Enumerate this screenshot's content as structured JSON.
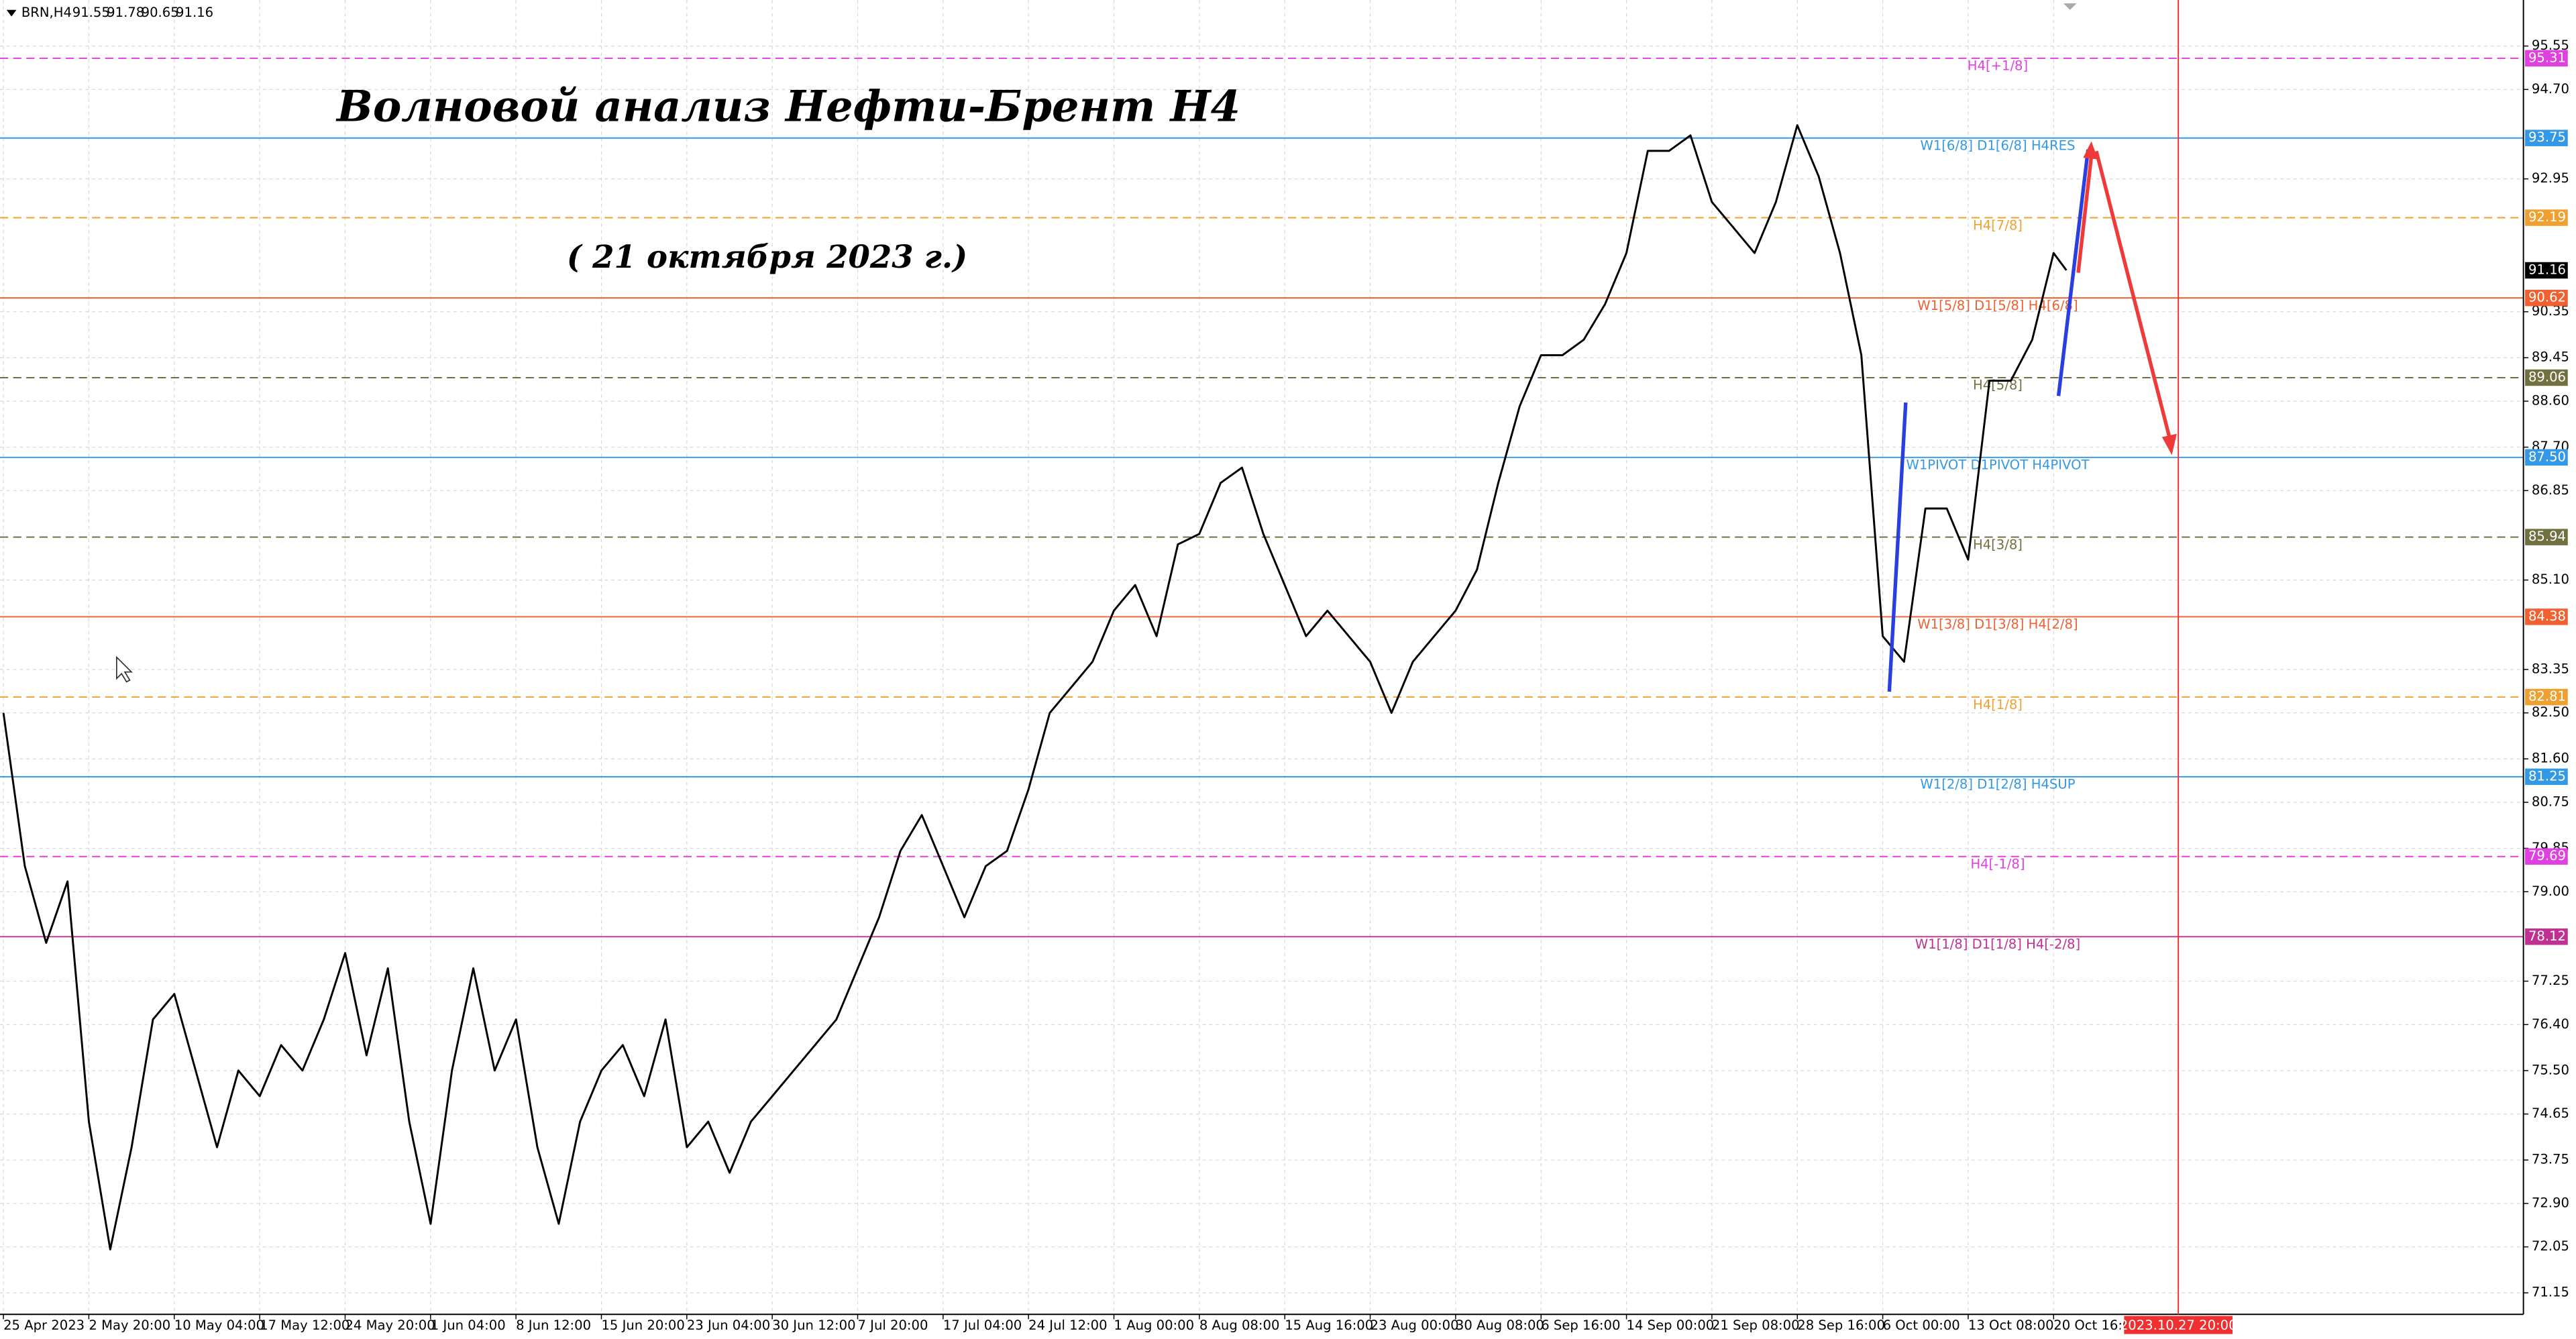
{
  "chart_data": {
    "type": "line",
    "symbol": "BRN,H4",
    "ohlc": [
      91.55,
      91.78,
      90.65,
      91.16
    ],
    "title": "Волновой анализ Нефти-Брент H4",
    "subtitle": "( 21 октября 2023 г.)",
    "grid": true,
    "xlim": [
      -0.04,
      29.5
    ],
    "ylim": [
      70.73,
      96.45
    ],
    "xticks": [
      {
        "value": 0,
        "label": "25 Apr 2023"
      },
      {
        "value": 1,
        "label": "2 May 20:00"
      },
      {
        "value": 2,
        "label": "10 May 04:00"
      },
      {
        "value": 3,
        "label": "17 May 12:00"
      },
      {
        "value": 4,
        "label": "24 May 20:00"
      },
      {
        "value": 5,
        "label": "1 Jun 04:00"
      },
      {
        "value": 6,
        "label": "8 Jun 12:00"
      },
      {
        "value": 7,
        "label": "15 Jun 20:00"
      },
      {
        "value": 8,
        "label": "23 Jun 04:00"
      },
      {
        "value": 9,
        "label": "30 Jun 12:00"
      },
      {
        "value": 10,
        "label": "7 Jul 20:00"
      },
      {
        "value": 11,
        "label": "17 Jul 04:00"
      },
      {
        "value": 12,
        "label": "24 Jul 12:00"
      },
      {
        "value": 13,
        "label": "1 Aug 00:00"
      },
      {
        "value": 14,
        "label": "8 Aug 08:00"
      },
      {
        "value": 15,
        "label": "15 Aug 16:00"
      },
      {
        "value": 16,
        "label": "23 Aug 00:00"
      },
      {
        "value": 17,
        "label": "30 Aug 08:00"
      },
      {
        "value": 18,
        "label": "6 Sep 16:00"
      },
      {
        "value": 19,
        "label": "14 Sep 00:00"
      },
      {
        "value": 20,
        "label": "21 Sep 08:00"
      },
      {
        "value": 21,
        "label": "28 Sep 16:00"
      },
      {
        "value": 22,
        "label": "6 Oct 00:00"
      },
      {
        "value": 23,
        "label": "13 Oct 08:00"
      },
      {
        "value": 24,
        "label": "20 Oct 16:00"
      }
    ],
    "yticks": [
      95.55,
      {
        "value": 94.7,
        "label": "94.70"
      },
      92.95,
      90.35,
      89.45,
      {
        "value": 88.6,
        "label": "88.60"
      },
      {
        "value": 87.7,
        "label": "87.70"
      },
      86.85,
      {
        "value": 85.1,
        "label": "85.10"
      },
      83.35,
      {
        "value": 82.5,
        "label": "82.50"
      },
      {
        "value": 81.6,
        "label": "81.60"
      },
      80.75,
      79.85,
      {
        "value": 79.0,
        "label": "79.00"
      },
      77.25,
      {
        "value": 76.4,
        "label": "76.40"
      },
      {
        "value": 75.5,
        "label": "75.50"
      },
      74.65,
      73.75,
      {
        "value": 72.9,
        "label": "72.90"
      },
      72.05,
      71.15
    ],
    "x": [
      0,
      0.25,
      0.5,
      0.75,
      1,
      1.25,
      1.5,
      1.75,
      2,
      2.25,
      2.5,
      2.75,
      3,
      3.25,
      3.5,
      3.75,
      4,
      4.25,
      4.5,
      4.75,
      5,
      5.25,
      5.5,
      5.75,
      6,
      6.25,
      6.5,
      6.75,
      7,
      7.25,
      7.5,
      7.75,
      8,
      8.25,
      8.5,
      8.75,
      9,
      9.25,
      9.5,
      9.75,
      10,
      10.25,
      10.5,
      10.75,
      11,
      11.25,
      11.5,
      11.75,
      12,
      12.25,
      12.5,
      12.75,
      13,
      13.25,
      13.5,
      13.75,
      14,
      14.25,
      14.5,
      14.75,
      15,
      15.25,
      15.5,
      15.75,
      16,
      16.25,
      16.5,
      16.75,
      17,
      17.25,
      17.5,
      17.75,
      18,
      18.25,
      18.5,
      18.75,
      19,
      19.25,
      19.5,
      19.75,
      20,
      20.25,
      20.5,
      20.75,
      21,
      21.25,
      21.5,
      21.75,
      22,
      22.25,
      22.5,
      22.75,
      23,
      23.25,
      23.5,
      23.75,
      24,
      24.15
    ],
    "values": [
      82.5,
      79.5,
      78.0,
      79.2,
      74.5,
      72.0,
      74.0,
      76.5,
      77.0,
      75.5,
      74.0,
      75.5,
      75.0,
      76.0,
      75.5,
      76.5,
      77.8,
      75.8,
      77.5,
      74.5,
      72.5,
      75.5,
      77.5,
      75.5,
      76.5,
      74.0,
      72.5,
      74.5,
      75.5,
      76.0,
      75.0,
      76.5,
      74.0,
      74.5,
      73.5,
      74.5,
      75.0,
      75.5,
      76.0,
      76.5,
      77.5,
      78.5,
      79.8,
      80.5,
      79.5,
      78.5,
      79.5,
      79.8,
      81.0,
      82.5,
      83.0,
      83.5,
      84.5,
      85.0,
      84.0,
      85.8,
      86.0,
      87.0,
      87.3,
      86.0,
      85.0,
      84.0,
      84.5,
      84.0,
      83.5,
      82.5,
      83.5,
      84.0,
      84.5,
      85.3,
      87.0,
      88.5,
      89.5,
      89.5,
      89.8,
      90.5,
      91.5,
      93.5,
      93.5,
      93.8,
      92.5,
      92.0,
      91.5,
      92.5,
      94.0,
      93.0,
      91.5,
      89.5,
      84.0,
      83.5,
      86.5,
      86.5,
      85.5,
      89.0,
      89.0,
      89.8,
      91.5,
      91.16
    ],
    "color": "#000000",
    "levels": [
      {
        "value": 95.31,
        "label": "H4[+1/8]",
        "color": "#e040e0",
        "style": "dashed"
      },
      {
        "value": 93.75,
        "label": "W1[6/8] D1[6/8] H4RES",
        "color": "#3399e6",
        "style": "solid"
      },
      {
        "value": 92.19,
        "label": "H4[7/8]",
        "color": "#f0a030",
        "style": "dashed"
      },
      {
        "value": 90.62,
        "label": "W1[5/8] D1[5/8] H4[6/8]",
        "color": "#f06030",
        "style": "solid"
      },
      {
        "value": 89.06,
        "label": "H4[5/8]",
        "color": "#707040",
        "style": "dashed"
      },
      {
        "value": 87.5,
        "tag": "87.50",
        "label": "W1PIVOT D1PIVOT H4PIVOT",
        "color": "#3399e6",
        "style": "solid"
      },
      {
        "value": 85.94,
        "label": "H4[3/8]",
        "color": "#707040",
        "style": "dashed"
      },
      {
        "value": 84.38,
        "label": "W1[3/8] D1[3/8] H4[2/8]",
        "color": "#f06030",
        "style": "solid"
      },
      {
        "value": 82.81,
        "label": "H4[1/8]",
        "color": "#f0a030",
        "style": "dashed"
      },
      {
        "value": 81.25,
        "label": "W1[2/8] D1[2/8] H4SUP",
        "color": "#3399e6",
        "style": "solid"
      },
      {
        "value": 79.69,
        "label": "H4[-1/8]",
        "color": "#e040e0",
        "style": "dashed"
      },
      {
        "value": 78.12,
        "label": "W1[1/8] D1[1/8] H4[-2/8]",
        "color": "#c03090",
        "style": "solid"
      }
    ],
    "last_price": 91.16,
    "vline": {
      "x": 25.46,
      "label": "2023.10.27 20:00",
      "color": "#f03030"
    }
  }
}
